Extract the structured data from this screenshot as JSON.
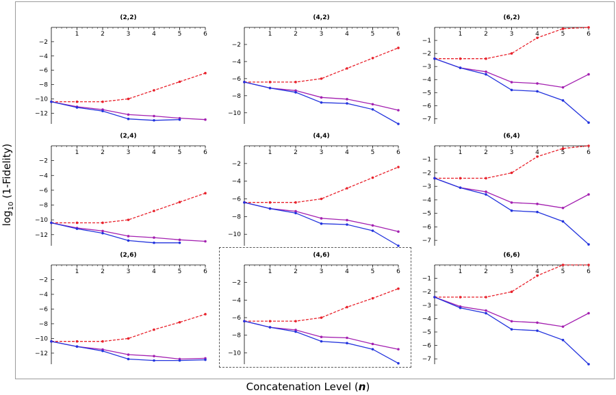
{
  "figure": {
    "xlabel_text": "Concatenation Level (",
    "xlabel_var": "n",
    "xlabel_close": ")",
    "ylabel_prefix": "log",
    "ylabel_sub": "10",
    "ylabel_suffix": " (1-Fidelity)",
    "colors": {
      "red": "#e8202a",
      "purple": "#a31fb0",
      "blue": "#2233dd",
      "axis": "#000000"
    },
    "highlighted_panel": "(4,6)"
  },
  "chart_data": [
    {
      "type": "line",
      "title": "(2,2)",
      "xlim": [
        0,
        6
      ],
      "ylim": [
        -13.5,
        0
      ],
      "xticks": [
        1,
        2,
        3,
        4,
        5,
        6
      ],
      "yticks": [
        -2,
        -4,
        -6,
        -8,
        -10,
        -12
      ],
      "series": [
        {
          "color": "red",
          "style": "dashed",
          "x": [
            0,
            1,
            2,
            3,
            4,
            5,
            6
          ],
          "y": [
            -10.4,
            -10.4,
            -10.4,
            -10.0,
            -8.8,
            -7.6,
            -6.4
          ]
        },
        {
          "color": "purple",
          "style": "solid",
          "x": [
            0,
            1,
            2,
            3,
            4,
            5,
            6
          ],
          "y": [
            -10.4,
            -11.1,
            -11.5,
            -12.2,
            -12.4,
            -12.7,
            -12.9
          ]
        },
        {
          "color": "blue",
          "style": "solid",
          "x": [
            0,
            1,
            2,
            3,
            4,
            5
          ],
          "y": [
            -10.4,
            -11.2,
            -11.7,
            -12.8,
            -13.0,
            -12.9
          ]
        }
      ]
    },
    {
      "type": "line",
      "title": "(4,2)",
      "xlim": [
        0,
        6
      ],
      "ylim": [
        -11.3,
        0
      ],
      "xticks": [
        1,
        2,
        3,
        4,
        5,
        6
      ],
      "yticks": [
        -2,
        -4,
        -6,
        -8,
        -10
      ],
      "series": [
        {
          "color": "red",
          "style": "dashed",
          "x": [
            0,
            1,
            2,
            3,
            4,
            5,
            6
          ],
          "y": [
            -6.4,
            -6.4,
            -6.4,
            -6.0,
            -4.8,
            -3.6,
            -2.4
          ]
        },
        {
          "color": "purple",
          "style": "solid",
          "x": [
            0,
            1,
            2,
            3,
            4,
            5,
            6
          ],
          "y": [
            -6.4,
            -7.1,
            -7.4,
            -8.2,
            -8.4,
            -9.0,
            -9.7
          ]
        },
        {
          "color": "blue",
          "style": "solid",
          "x": [
            0,
            1,
            2,
            3,
            4,
            5,
            6
          ],
          "y": [
            -6.4,
            -7.1,
            -7.6,
            -8.8,
            -8.9,
            -9.6,
            -11.3
          ]
        }
      ]
    },
    {
      "type": "line",
      "title": "(6,2)",
      "xlim": [
        0,
        6
      ],
      "ylim": [
        -7.4,
        0
      ],
      "xticks": [
        1,
        2,
        3,
        4,
        5,
        6
      ],
      "yticks": [
        -1,
        -2,
        -3,
        -4,
        -5,
        -6,
        -7
      ],
      "series": [
        {
          "color": "red",
          "style": "dashed",
          "x": [
            0,
            1,
            2,
            3,
            4,
            5,
            6
          ],
          "y": [
            -2.4,
            -2.4,
            -2.4,
            -2.0,
            -0.8,
            -0.1,
            0.0
          ]
        },
        {
          "color": "purple",
          "style": "solid",
          "x": [
            0,
            1,
            2,
            3,
            4,
            5,
            6
          ],
          "y": [
            -2.4,
            -3.1,
            -3.4,
            -4.2,
            -4.3,
            -4.6,
            -3.6
          ]
        },
        {
          "color": "blue",
          "style": "solid",
          "x": [
            0,
            1,
            2,
            3,
            4,
            5,
            6
          ],
          "y": [
            -2.4,
            -3.1,
            -3.6,
            -4.8,
            -4.9,
            -5.6,
            -7.3
          ]
        }
      ]
    },
    {
      "type": "line",
      "title": "(2,4)",
      "xlim": [
        0,
        6
      ],
      "ylim": [
        -13.5,
        0
      ],
      "xticks": [
        1,
        2,
        3,
        4,
        5,
        6
      ],
      "yticks": [
        -2,
        -4,
        -6,
        -8,
        -10,
        -12
      ],
      "series": [
        {
          "color": "red",
          "style": "dashed",
          "x": [
            0,
            1,
            2,
            3,
            4,
            5,
            6
          ],
          "y": [
            -10.4,
            -10.4,
            -10.4,
            -10.0,
            -8.8,
            -7.6,
            -6.4
          ]
        },
        {
          "color": "purple",
          "style": "solid",
          "x": [
            0,
            1,
            2,
            3,
            4,
            5,
            6
          ],
          "y": [
            -10.4,
            -11.1,
            -11.5,
            -12.2,
            -12.4,
            -12.7,
            -12.9
          ]
        },
        {
          "color": "blue",
          "style": "solid",
          "x": [
            0,
            1,
            2,
            3,
            4,
            5
          ],
          "y": [
            -10.4,
            -11.2,
            -11.8,
            -12.8,
            -13.1,
            -13.1
          ]
        }
      ]
    },
    {
      "type": "line",
      "title": "(4,4)",
      "xlim": [
        0,
        6
      ],
      "ylim": [
        -11.3,
        0
      ],
      "xticks": [
        1,
        2,
        3,
        4,
        5,
        6
      ],
      "yticks": [
        -2,
        -4,
        -6,
        -8,
        -10
      ],
      "series": [
        {
          "color": "red",
          "style": "dashed",
          "x": [
            0,
            1,
            2,
            3,
            4,
            5,
            6
          ],
          "y": [
            -6.4,
            -6.4,
            -6.4,
            -6.0,
            -4.8,
            -3.6,
            -2.4
          ]
        },
        {
          "color": "purple",
          "style": "solid",
          "x": [
            0,
            1,
            2,
            3,
            4,
            5,
            6
          ],
          "y": [
            -6.4,
            -7.1,
            -7.4,
            -8.2,
            -8.4,
            -9.0,
            -9.7
          ]
        },
        {
          "color": "blue",
          "style": "solid",
          "x": [
            0,
            1,
            2,
            3,
            4,
            5,
            6
          ],
          "y": [
            -6.4,
            -7.1,
            -7.6,
            -8.8,
            -8.9,
            -9.6,
            -11.3
          ]
        }
      ]
    },
    {
      "type": "line",
      "title": "(6,4)",
      "xlim": [
        0,
        6
      ],
      "ylim": [
        -7.4,
        0
      ],
      "xticks": [
        1,
        2,
        3,
        4,
        5,
        6
      ],
      "yticks": [
        -1,
        -2,
        -3,
        -4,
        -5,
        -6,
        -7
      ],
      "series": [
        {
          "color": "red",
          "style": "dashed",
          "x": [
            0,
            1,
            2,
            3,
            4,
            5,
            6
          ],
          "y": [
            -2.4,
            -2.4,
            -2.4,
            -2.0,
            -0.8,
            -0.2,
            0.0
          ]
        },
        {
          "color": "purple",
          "style": "solid",
          "x": [
            0,
            1,
            2,
            3,
            4,
            5,
            6
          ],
          "y": [
            -2.4,
            -3.1,
            -3.4,
            -4.2,
            -4.3,
            -4.6,
            -3.6
          ]
        },
        {
          "color": "blue",
          "style": "solid",
          "x": [
            0,
            1,
            2,
            3,
            4,
            5,
            6
          ],
          "y": [
            -2.4,
            -3.1,
            -3.6,
            -4.8,
            -4.9,
            -5.6,
            -7.3
          ]
        }
      ]
    },
    {
      "type": "line",
      "title": "(2,6)",
      "xlim": [
        0,
        6
      ],
      "ylim": [
        -13.5,
        0
      ],
      "xticks": [
        1,
        2,
        3,
        4,
        5,
        6
      ],
      "yticks": [
        -2,
        -4,
        -6,
        -8,
        -10,
        -12
      ],
      "series": [
        {
          "color": "red",
          "style": "dashed",
          "x": [
            0,
            1,
            2,
            3,
            4,
            5,
            6
          ],
          "y": [
            -10.4,
            -10.4,
            -10.4,
            -10.0,
            -8.8,
            -7.8,
            -6.7
          ]
        },
        {
          "color": "purple",
          "style": "solid",
          "x": [
            0,
            1,
            2,
            3,
            4,
            5,
            6
          ],
          "y": [
            -10.4,
            -11.1,
            -11.5,
            -12.2,
            -12.4,
            -12.8,
            -12.7
          ]
        },
        {
          "color": "blue",
          "style": "solid",
          "x": [
            0,
            1,
            2,
            3,
            4,
            5,
            6
          ],
          "y": [
            -10.4,
            -11.1,
            -11.7,
            -12.8,
            -13.0,
            -13.0,
            -12.9
          ]
        }
      ]
    },
    {
      "type": "line",
      "title": "(4,6)",
      "xlim": [
        0,
        6
      ],
      "ylim": [
        -11.3,
        0
      ],
      "xticks": [
        1,
        2,
        3,
        4,
        5,
        6
      ],
      "yticks": [
        -2,
        -4,
        -6,
        -8,
        -10
      ],
      "series": [
        {
          "color": "red",
          "style": "dashed",
          "x": [
            0,
            1,
            2,
            3,
            4,
            5,
            6
          ],
          "y": [
            -6.4,
            -6.4,
            -6.4,
            -6.0,
            -4.8,
            -3.8,
            -2.7
          ]
        },
        {
          "color": "purple",
          "style": "solid",
          "x": [
            0,
            1,
            2,
            3,
            4,
            5,
            6
          ],
          "y": [
            -6.4,
            -7.1,
            -7.4,
            -8.2,
            -8.3,
            -9.0,
            -9.6
          ]
        },
        {
          "color": "blue",
          "style": "solid",
          "x": [
            0,
            1,
            2,
            3,
            4,
            5,
            6
          ],
          "y": [
            -6.4,
            -7.1,
            -7.6,
            -8.7,
            -8.9,
            -9.6,
            -11.2
          ]
        }
      ]
    },
    {
      "type": "line",
      "title": "(6,6)",
      "xlim": [
        0,
        6
      ],
      "ylim": [
        -7.4,
        0
      ],
      "xticks": [
        1,
        2,
        3,
        4,
        5,
        6
      ],
      "yticks": [
        -1,
        -2,
        -3,
        -4,
        -5,
        -6,
        -7
      ],
      "series": [
        {
          "color": "red",
          "style": "dashed",
          "x": [
            0,
            1,
            2,
            3,
            4,
            5,
            6
          ],
          "y": [
            -2.4,
            -2.4,
            -2.4,
            -2.0,
            -0.8,
            0.0,
            0.0
          ]
        },
        {
          "color": "purple",
          "style": "solid",
          "x": [
            0,
            1,
            2,
            3,
            4,
            5,
            6
          ],
          "y": [
            -2.4,
            -3.1,
            -3.4,
            -4.2,
            -4.3,
            -4.6,
            -3.6
          ]
        },
        {
          "color": "blue",
          "style": "solid",
          "x": [
            0,
            1,
            2,
            3,
            4,
            5,
            6
          ],
          "y": [
            -2.4,
            -3.2,
            -3.6,
            -4.8,
            -4.9,
            -5.6,
            -7.4
          ]
        }
      ]
    }
  ]
}
